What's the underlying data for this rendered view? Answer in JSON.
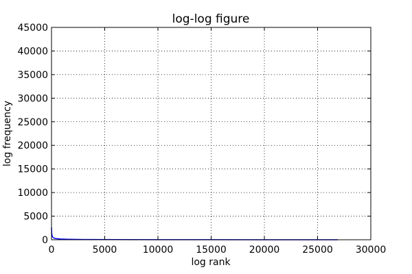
{
  "chart_data": {
    "type": "line",
    "title": "log-log figure",
    "xlabel": "log rank",
    "ylabel": "log frequency",
    "xlim": [
      0,
      30000
    ],
    "ylim": [
      0,
      45000
    ],
    "xticks": [
      0,
      5000,
      10000,
      15000,
      20000,
      25000,
      30000
    ],
    "yticks": [
      0,
      5000,
      10000,
      15000,
      20000,
      25000,
      30000,
      35000,
      40000,
      45000
    ],
    "grid": true,
    "series": [
      {
        "color": "#0000ff",
        "x": [
          1,
          20,
          50,
          100,
          200,
          400,
          800,
          1500,
          3000,
          6000,
          10000,
          15000,
          20000,
          25000,
          26900
        ],
        "y": [
          2600,
          1500,
          900,
          600,
          380,
          250,
          160,
          110,
          60,
          30,
          18,
          10,
          5,
          2,
          1
        ]
      }
    ]
  }
}
